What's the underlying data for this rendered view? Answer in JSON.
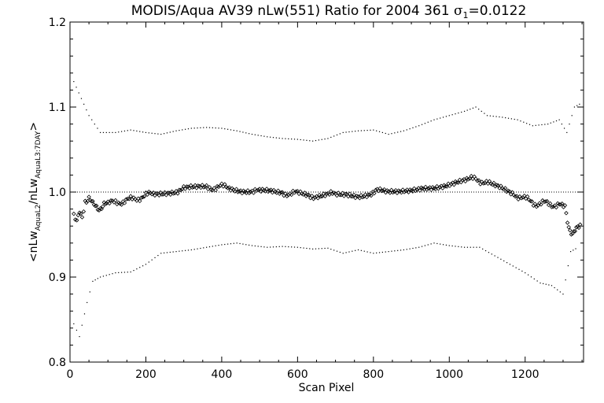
{
  "chart_data": {
    "type": "scatter",
    "title": {
      "main": "MODIS/Aqua AV39 nLw(551) Ratio for 2004 361 ",
      "sigma": "σ",
      "sigma_sub": "1",
      "sigma_value": "=0.0122"
    },
    "xlabel": "Scan Pixel",
    "ylabel": {
      "p1": "<nLw",
      "s1": "AquaL2",
      "p2": "/nLw",
      "s2": "AquaL3:7DAY",
      "p3": ">"
    },
    "xlim": [
      0,
      1354
    ],
    "ylim": [
      0.8,
      1.2
    ],
    "xticks": [
      0,
      200,
      400,
      600,
      800,
      1000,
      1200
    ],
    "xtick_labels": [
      "0",
      "200",
      "400",
      "600",
      "800",
      "1000",
      "1200"
    ],
    "yticks": [
      0.8,
      0.9,
      1.0,
      1.1,
      1.2
    ],
    "ytick_labels": [
      "0.8",
      "0.9",
      "1.0",
      "1.1",
      "1.2"
    ],
    "reference_line": 1.0,
    "grid": false,
    "series": [
      {
        "style": "diamond",
        "points": [
          [
            10,
            0.975
          ],
          [
            18,
            0.968
          ],
          [
            25,
            0.98
          ],
          [
            32,
            0.972
          ],
          [
            40,
            0.99
          ],
          [
            50,
            0.993
          ],
          [
            60,
            0.985
          ],
          [
            70,
            0.983
          ],
          [
            80,
            0.981
          ],
          [
            90,
            0.984
          ],
          [
            100,
            0.986
          ],
          [
            120,
            0.988
          ],
          [
            140,
            0.989
          ],
          [
            160,
            0.991
          ],
          [
            180,
            0.993
          ],
          [
            200,
            0.996
          ],
          [
            220,
            0.998
          ],
          [
            250,
            1.0
          ],
          [
            280,
            1.002
          ],
          [
            300,
            1.003
          ],
          [
            330,
            1.004
          ],
          [
            360,
            1.005
          ],
          [
            400,
            1.006
          ],
          [
            420,
            1.006
          ],
          [
            450,
            1.003
          ],
          [
            480,
            1.002
          ],
          [
            500,
            1.0
          ],
          [
            530,
            1.0
          ],
          [
            560,
            0.999
          ],
          [
            600,
            0.998
          ],
          [
            630,
            0.995
          ],
          [
            650,
            0.996
          ],
          [
            680,
            0.998
          ],
          [
            700,
            0.996
          ],
          [
            730,
            0.997
          ],
          [
            760,
            0.996
          ],
          [
            790,
            0.999
          ],
          [
            810,
            1.001
          ],
          [
            840,
            0.998
          ],
          [
            870,
            0.999
          ],
          [
            900,
            1.002
          ],
          [
            930,
            1.006
          ],
          [
            960,
            1.007
          ],
          [
            990,
            1.009
          ],
          [
            1020,
            1.012
          ],
          [
            1050,
            1.014
          ],
          [
            1070,
            1.016
          ],
          [
            1090,
            1.012
          ],
          [
            1110,
            1.008
          ],
          [
            1140,
            1.004
          ],
          [
            1170,
            0.998
          ],
          [
            1190,
            0.994
          ],
          [
            1210,
            0.99
          ],
          [
            1230,
            0.986
          ],
          [
            1250,
            0.987
          ],
          [
            1270,
            0.985
          ],
          [
            1290,
            0.986
          ],
          [
            1305,
            0.982
          ],
          [
            1315,
            0.96
          ],
          [
            1325,
            0.95
          ],
          [
            1335,
            0.955
          ],
          [
            1345,
            0.962
          ],
          [
            1350,
            0.968
          ]
        ]
      },
      {
        "style": "dot",
        "name": "upper",
        "points": [
          [
            10,
            1.13
          ],
          [
            30,
            1.11
          ],
          [
            50,
            1.09
          ],
          [
            80,
            1.07
          ],
          [
            120,
            1.07
          ],
          [
            160,
            1.073
          ],
          [
            200,
            1.07
          ],
          [
            240,
            1.068
          ],
          [
            280,
            1.072
          ],
          [
            320,
            1.075
          ],
          [
            360,
            1.076
          ],
          [
            400,
            1.075
          ],
          [
            440,
            1.072
          ],
          [
            480,
            1.068
          ],
          [
            520,
            1.065
          ],
          [
            560,
            1.063
          ],
          [
            600,
            1.062
          ],
          [
            640,
            1.06
          ],
          [
            680,
            1.063
          ],
          [
            720,
            1.07
          ],
          [
            760,
            1.072
          ],
          [
            800,
            1.073
          ],
          [
            840,
            1.068
          ],
          [
            880,
            1.072
          ],
          [
            920,
            1.078
          ],
          [
            960,
            1.085
          ],
          [
            1000,
            1.09
          ],
          [
            1040,
            1.095
          ],
          [
            1070,
            1.1
          ],
          [
            1100,
            1.09
          ],
          [
            1140,
            1.088
          ],
          [
            1180,
            1.085
          ],
          [
            1220,
            1.078
          ],
          [
            1260,
            1.08
          ],
          [
            1290,
            1.085
          ],
          [
            1310,
            1.07
          ],
          [
            1330,
            1.1
          ],
          [
            1350,
            1.105
          ]
        ]
      },
      {
        "style": "dot",
        "name": "lower",
        "points": [
          [
            10,
            0.845
          ],
          [
            25,
            0.83
          ],
          [
            45,
            0.87
          ],
          [
            60,
            0.895
          ],
          [
            80,
            0.9
          ],
          [
            120,
            0.905
          ],
          [
            160,
            0.906
          ],
          [
            200,
            0.915
          ],
          [
            240,
            0.928
          ],
          [
            280,
            0.93
          ],
          [
            320,
            0.932
          ],
          [
            360,
            0.935
          ],
          [
            400,
            0.938
          ],
          [
            440,
            0.94
          ],
          [
            480,
            0.937
          ],
          [
            520,
            0.935
          ],
          [
            560,
            0.936
          ],
          [
            600,
            0.935
          ],
          [
            640,
            0.933
          ],
          [
            680,
            0.934
          ],
          [
            720,
            0.928
          ],
          [
            760,
            0.932
          ],
          [
            800,
            0.928
          ],
          [
            840,
            0.93
          ],
          [
            880,
            0.932
          ],
          [
            920,
            0.935
          ],
          [
            960,
            0.94
          ],
          [
            1000,
            0.937
          ],
          [
            1040,
            0.935
          ],
          [
            1080,
            0.935
          ],
          [
            1120,
            0.925
          ],
          [
            1160,
            0.915
          ],
          [
            1200,
            0.905
          ],
          [
            1240,
            0.893
          ],
          [
            1270,
            0.89
          ],
          [
            1300,
            0.88
          ],
          [
            1320,
            0.93
          ],
          [
            1340,
            0.935
          ]
        ]
      }
    ]
  }
}
